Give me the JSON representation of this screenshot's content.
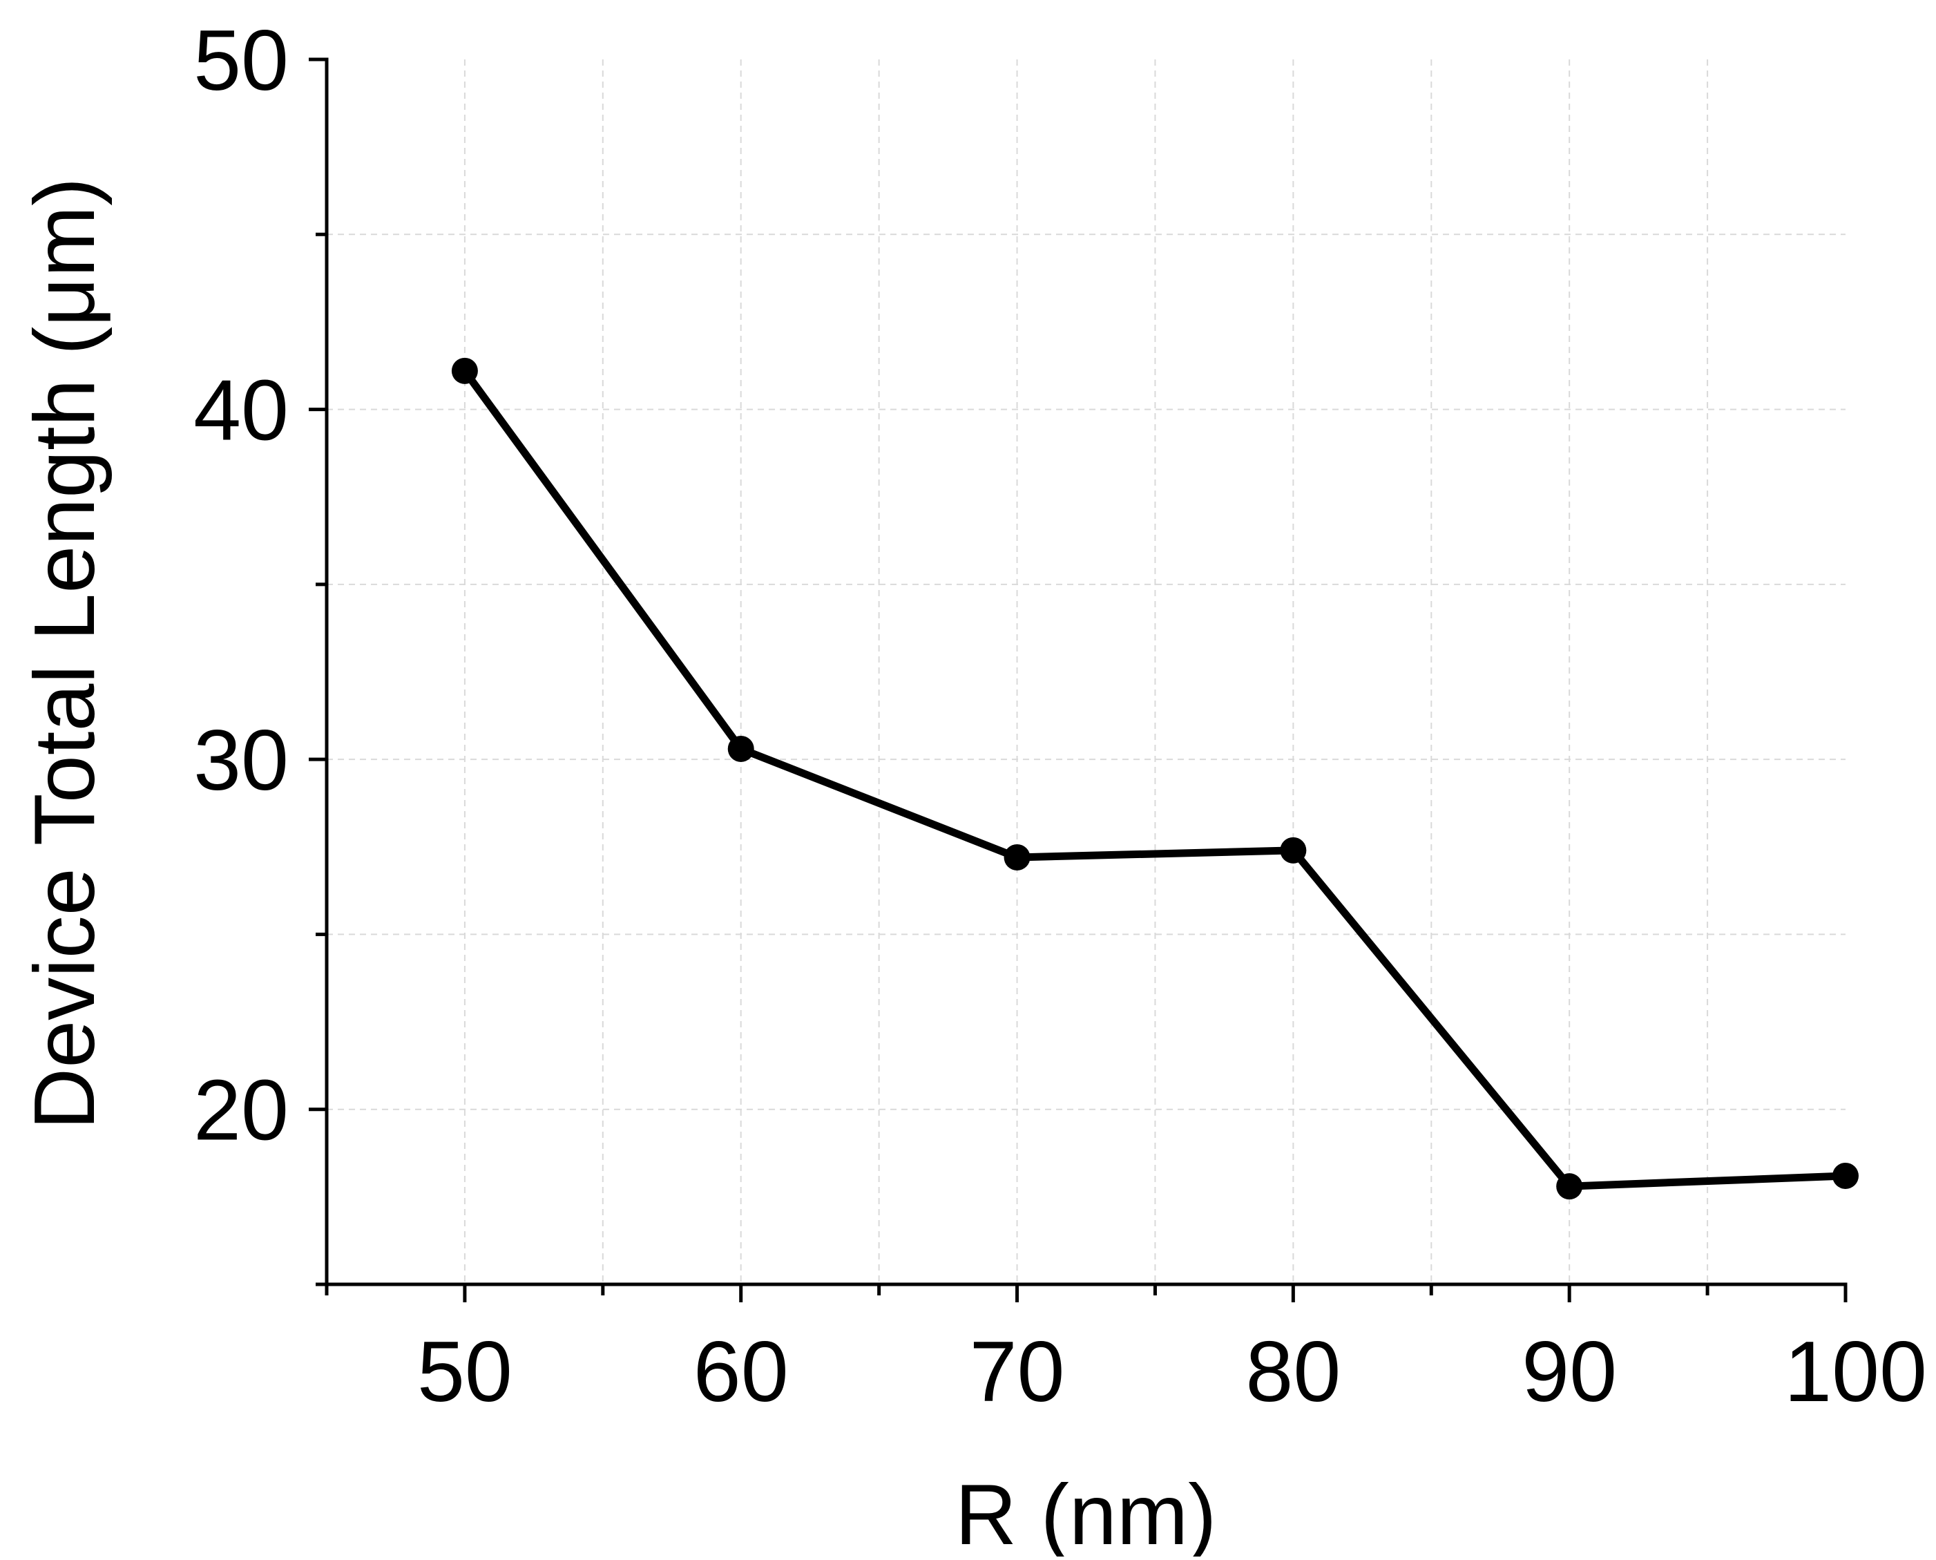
{
  "chart_data": {
    "type": "line",
    "title": "",
    "xlabel": "R (nm)",
    "ylabel": "Device Total Length (μm)",
    "x": [
      50,
      60,
      70,
      80,
      90,
      100
    ],
    "series": [
      {
        "name": "Device Total Length",
        "values": [
          41.1,
          30.3,
          27.2,
          27.4,
          17.8,
          18.1
        ]
      }
    ],
    "xlim": [
      45,
      100
    ],
    "ylim": [
      15,
      50
    ],
    "x_major_ticks": [
      50,
      60,
      70,
      80,
      90,
      100
    ],
    "x_tick_labels": [
      "50",
      "60",
      "70",
      "80",
      "90",
      "100"
    ],
    "x_minor_ticks": [
      45,
      55,
      65,
      75,
      85,
      95
    ],
    "y_major_ticks": [
      20,
      30,
      40,
      50
    ],
    "y_tick_labels": [
      "20",
      "30",
      "40",
      "50"
    ],
    "y_minor_ticks": [
      15,
      25,
      35,
      45
    ],
    "grid": true,
    "grid_style": "dashed",
    "line_color": "#000000",
    "marker": "circle",
    "marker_color": "#000000",
    "grid_color": "#d9d9d9"
  }
}
